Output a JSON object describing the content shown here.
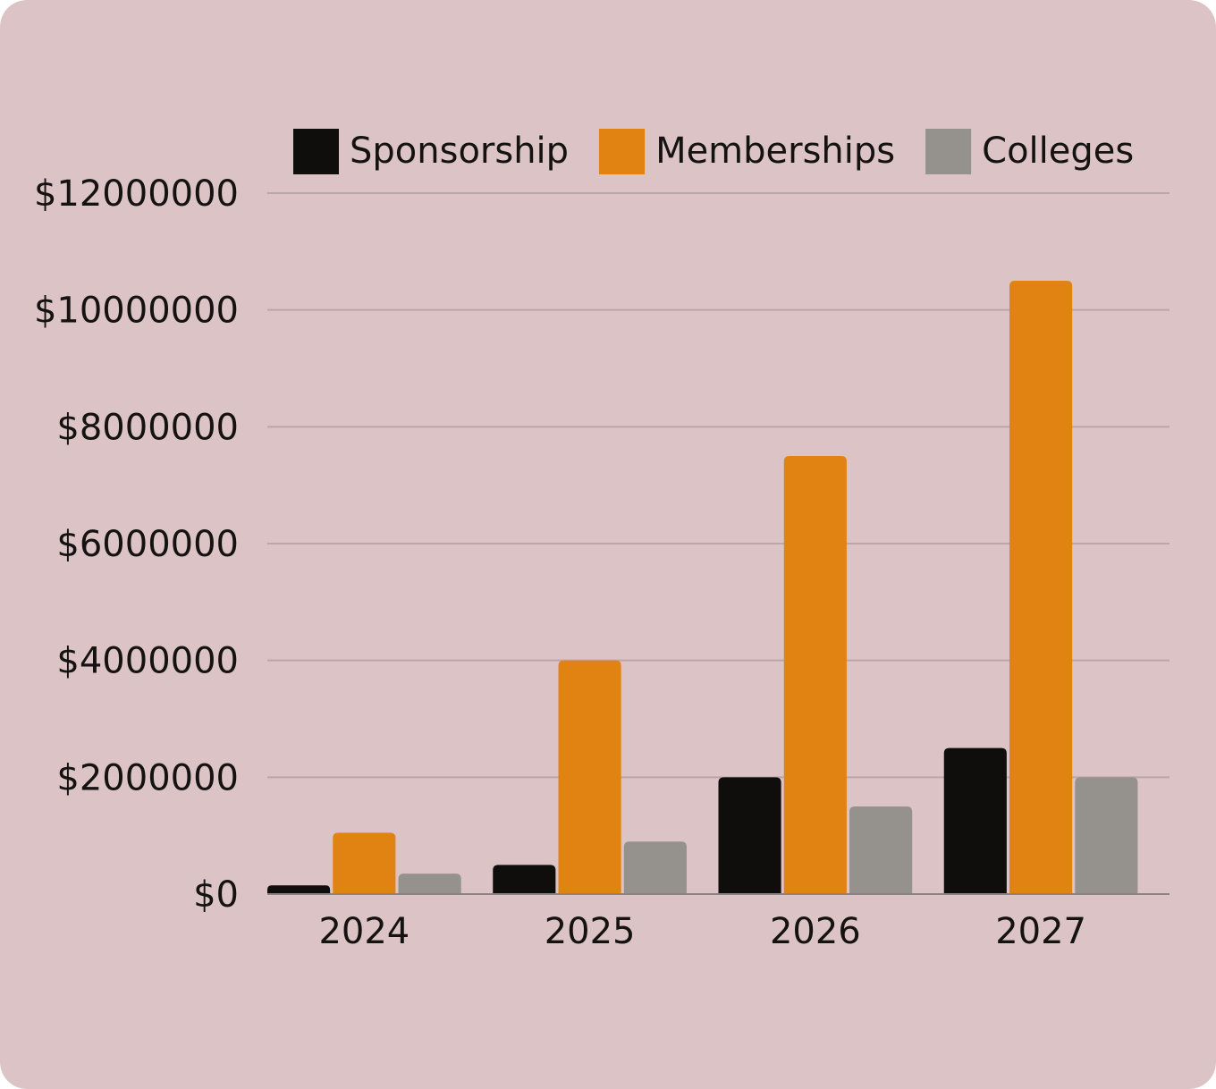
{
  "colors": {
    "background": "#dcc3c5",
    "gridline": "#bba6a9",
    "axis": "#8d8283",
    "text": "#151212"
  },
  "chart_data": {
    "type": "bar",
    "title": "",
    "xlabel": "",
    "ylabel": "",
    "categories": [
      "2024",
      "2025",
      "2026",
      "2027"
    ],
    "series": [
      {
        "name": "Sponsorship",
        "color": "#100e0d",
        "values": [
          150000,
          500000,
          2000000,
          2500000
        ]
      },
      {
        "name": "Memberships",
        "color": "#e08312",
        "values": [
          1050000,
          4000000,
          7500000,
          10500000
        ]
      },
      {
        "name": "Colleges",
        "color": "#95918c",
        "values": [
          350000,
          900000,
          1500000,
          2000000
        ]
      }
    ],
    "ylim": [
      0,
      12000000
    ],
    "yticks": [
      0,
      2000000,
      4000000,
      6000000,
      8000000,
      10000000,
      12000000
    ],
    "ytick_labels": [
      "$0",
      "$2000000",
      "$4000000",
      "$6000000",
      "$8000000",
      "$10000000",
      "$12000000"
    ],
    "grid": true,
    "legend_position": "top-right"
  }
}
